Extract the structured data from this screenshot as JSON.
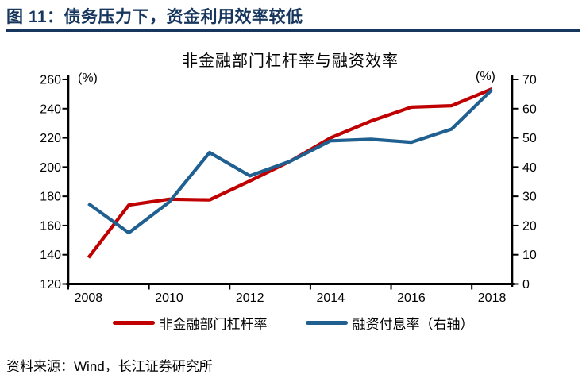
{
  "header": {
    "title": "图 11：债务压力下，资金利用效率较低"
  },
  "chart_data": {
    "type": "line",
    "title": "非金融部门杠杆率与融资效率",
    "categories": [
      "2008",
      "2009",
      "2010",
      "2011",
      "2012",
      "2013",
      "2014",
      "2015",
      "2016",
      "2017",
      "2018"
    ],
    "x_tick_labels": [
      "2008",
      "2010",
      "2012",
      "2014",
      "2016",
      "2018"
    ],
    "series": [
      {
        "name": "非金融部门杠杆率",
        "axis": "left",
        "color": "#C00000",
        "values": [
          138,
          174,
          178,
          177.5,
          190.5,
          204,
          220,
          231.5,
          241,
          242,
          253.5
        ]
      },
      {
        "name": "融资付息率（右轴）",
        "axis": "right",
        "color": "#1F6091",
        "values": [
          27.5,
          17.5,
          28,
          45,
          37,
          42,
          49,
          49.5,
          48.5,
          53,
          66.5
        ]
      }
    ],
    "left_axis": {
      "unit": "(%)",
      "min": 120,
      "max": 260,
      "ticks": [
        260,
        240,
        220,
        200,
        180,
        160,
        140,
        120
      ]
    },
    "right_axis": {
      "unit": "(%)",
      "min": 0,
      "max": 70,
      "ticks": [
        70,
        60,
        50,
        40,
        30,
        20,
        10,
        0
      ]
    },
    "legend_position": "bottom",
    "grid": false
  },
  "footer": {
    "source": "资料来源：Wind，长江证券研究所"
  },
  "colors": {
    "header": "#17365D",
    "divider": "#17365D",
    "axis": "#000000",
    "red_series": "#C00000",
    "blue_series": "#1F6091"
  }
}
